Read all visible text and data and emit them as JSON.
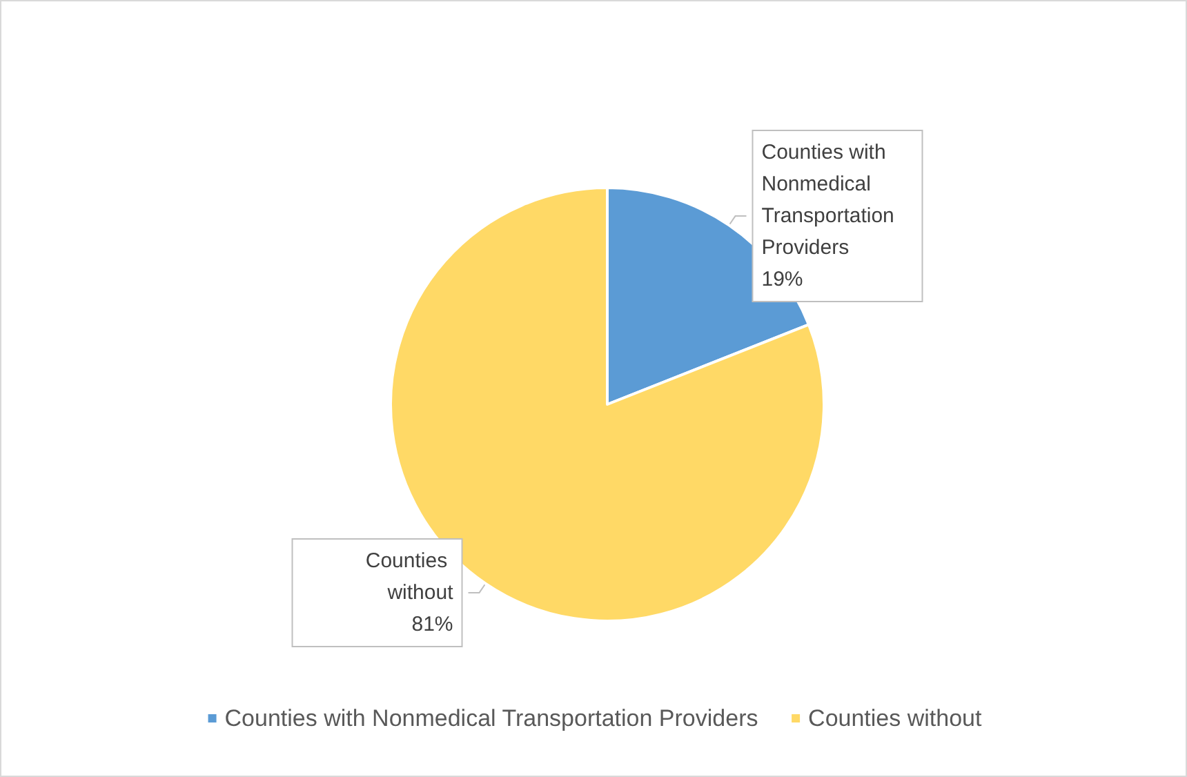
{
  "chart_data": {
    "type": "pie",
    "categories": [
      "Counties with Nonmedical Transportation Providers",
      "Counties without"
    ],
    "values": [
      19,
      81
    ],
    "colors": [
      "#5b9bd5",
      "#ffd966"
    ],
    "value_labels": [
      "19%",
      "81%"
    ],
    "legend": "bottom"
  }
}
